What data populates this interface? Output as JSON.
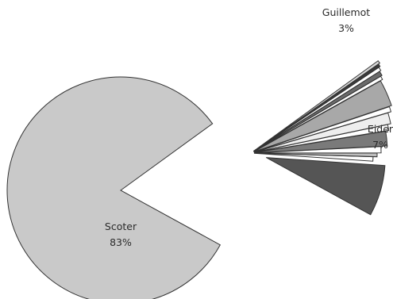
{
  "chart_data": {
    "type": "pie",
    "exploded": true,
    "series": [
      {
        "slices": [
          {
            "label": "Scoter",
            "value": 83,
            "value_label": "83%",
            "color": "#c9c9c9"
          },
          {
            "label": "Eider",
            "value": 7,
            "value_label": "7%",
            "color": "#555555"
          },
          {
            "label": "",
            "value": 0.6,
            "color": "#ffffff"
          },
          {
            "label": "",
            "value": 0.5,
            "color": "#bdbdbd"
          },
          {
            "label": "",
            "value": 0.8,
            "color": "#ffffff"
          },
          {
            "label": "",
            "value": 1.8,
            "color": "#7a7a7a"
          },
          {
            "label": "",
            "value": 0.7,
            "color": "#ffffff"
          },
          {
            "label": "",
            "value": 1.3,
            "color": "#eeeeee"
          },
          {
            "label": "",
            "value": 0.6,
            "color": "#ffffff"
          },
          {
            "label": "Guillemot",
            "value": 3,
            "value_label": "3%",
            "color": "#a8a8a8"
          },
          {
            "label": "",
            "value": 0.4,
            "color": "#ffffff"
          },
          {
            "label": "",
            "value": 0.5,
            "color": "#6a6a6a"
          },
          {
            "label": "",
            "value": 0.4,
            "color": "#ffffff"
          },
          {
            "label": "",
            "value": 0.3,
            "color": "#3a3a3a"
          },
          {
            "label": "",
            "value": 0.3,
            "color": "#d8d8d8"
          }
        ]
      }
    ]
  }
}
